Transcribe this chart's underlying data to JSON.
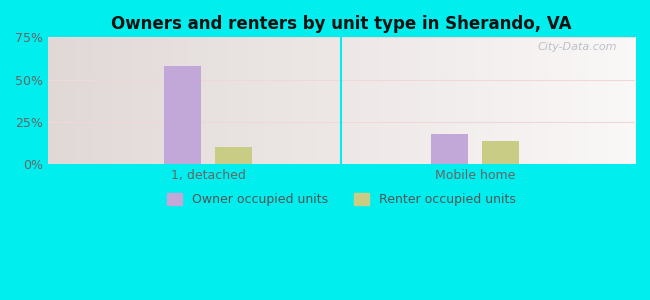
{
  "title": "Owners and renters by unit type in Sherando, VA",
  "categories": [
    "1, detached",
    "Mobile home"
  ],
  "owner_values": [
    58,
    18
  ],
  "renter_values": [
    10,
    14
  ],
  "owner_color": "#c2a8d8",
  "renter_color": "#c8cc84",
  "ylim": [
    0,
    75
  ],
  "yticks": [
    0,
    25,
    50,
    75
  ],
  "ytick_labels": [
    "0%",
    "25%",
    "50%",
    "75%"
  ],
  "legend_owner": "Owner occupied units",
  "legend_renter": "Renter occupied units",
  "watermark": "City-Data.com",
  "bar_width": 0.28,
  "outer_bg": "#00eeee",
  "plot_bg_left": "#d8edcc",
  "plot_bg_right": "#f0f8e8",
  "grid_color": "#e8e8d0",
  "title_fontsize": 12,
  "tick_fontsize": 9
}
